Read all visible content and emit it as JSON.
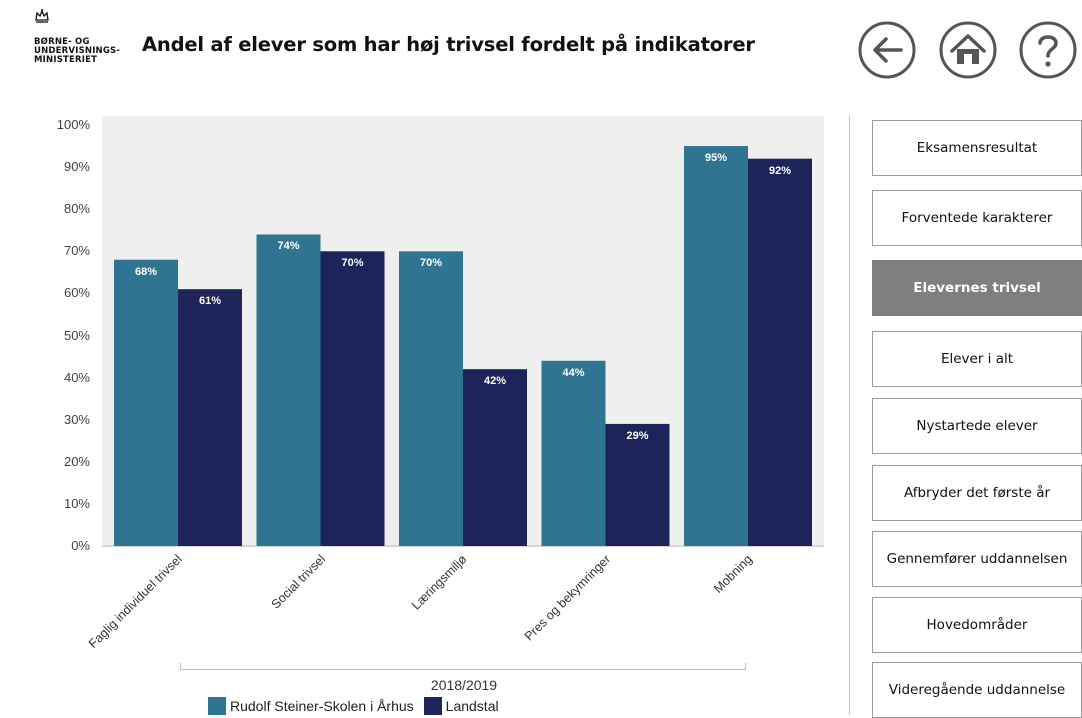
{
  "header": {
    "logo_lines": [
      "BØRNE- OG",
      "UNDERVISNINGS-",
      "MINISTERIET"
    ],
    "title": "Andel af elever som har høj trivsel fordelt på indikatorer"
  },
  "nav": {
    "back_icon": "arrow-left-circle-icon",
    "home_icon": "home-circle-icon",
    "help_icon": "question-circle-icon"
  },
  "colors": {
    "school": "#2f7591",
    "national": "#1c2459",
    "active_button": "#7f7f7f"
  },
  "chart_data": {
    "type": "bar",
    "categories": [
      "Faglig individuel trivsel",
      "Social trivsel",
      "Læringsmiljø",
      "Pres og bekymringer",
      "Mobning"
    ],
    "series": [
      {
        "name": "Rudolf Steiner-Skolen i Århus",
        "values": [
          68,
          74,
          70,
          44,
          95
        ],
        "labels": [
          "68%",
          "74%",
          "70%",
          "44%",
          "95%"
        ]
      },
      {
        "name": "Landstal",
        "values": [
          61,
          70,
          42,
          29,
          92
        ],
        "labels": [
          "61%",
          "70%",
          "42%",
          "29%",
          "92%"
        ]
      }
    ],
    "y_ticks": [
      "0%",
      "10%",
      "20%",
      "30%",
      "40%",
      "50%",
      "60%",
      "70%",
      "80%",
      "90%",
      "100%"
    ],
    "ylim": [
      0,
      100
    ],
    "group_label": "2018/2019",
    "legend_position": "bottom",
    "grid": false
  },
  "sidebar": {
    "items": [
      {
        "label": "Eksamensresultat",
        "active": false
      },
      {
        "label": "Forventede karakterer",
        "active": false
      },
      {
        "label": "Elevernes trivsel",
        "active": true
      },
      {
        "label": "Elever i alt",
        "active": false
      },
      {
        "label": "Nystartede elever",
        "active": false
      },
      {
        "label": "Afbryder det første år",
        "active": false
      },
      {
        "label": "Gennemfører uddannelsen",
        "active": false
      },
      {
        "label": "Hovedområder",
        "active": false
      },
      {
        "label": "Videregående uddannelse",
        "active": false
      }
    ]
  }
}
